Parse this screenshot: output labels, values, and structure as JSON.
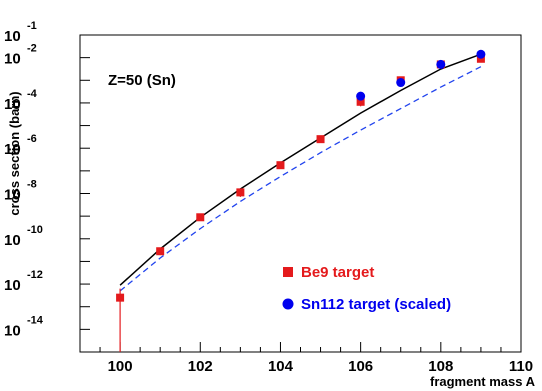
{
  "chart_data": {
    "type": "scatter",
    "title": "",
    "xlabel": "fragment mass A",
    "ylabel": "cross section (barn)",
    "annotation": "Z=50 (Sn)",
    "xlim": [
      99,
      110
    ],
    "ylim_log10": [
      -15,
      -1
    ],
    "y_scale": "log",
    "grid": false,
    "legend_position": "bottom-right",
    "x_ticks": [
      100,
      102,
      104,
      106,
      108,
      110
    ],
    "y_ticks": [
      {
        "base": "10",
        "exp": "-1"
      },
      {
        "base": "10",
        "exp": "-2"
      },
      {
        "base": "10",
        "exp": "-4"
      },
      {
        "base": "10",
        "exp": "-6"
      },
      {
        "base": "10",
        "exp": "-8"
      },
      {
        "base": "10",
        "exp": "-10"
      },
      {
        "base": "10",
        "exp": "-12"
      },
      {
        "base": "10",
        "exp": "-14"
      }
    ],
    "series": [
      {
        "name": "Be9 target",
        "kind": "points",
        "marker": "square",
        "color": "#e41a1c",
        "x": [
          100,
          101,
          102,
          103,
          104,
          105,
          106,
          107,
          108,
          109
        ],
        "log10_y": [
          -12.6,
          -10.55,
          -9.05,
          -7.95,
          -6.75,
          -5.6,
          -3.95,
          -3.0,
          -2.3,
          -2.05
        ],
        "log10_err_low": [
          3.2,
          0.15,
          0.1,
          0.2,
          0.1,
          0.1,
          0.2,
          0.2,
          0.1,
          0.1
        ],
        "log10_err_high": [
          0.4,
          0.1,
          0.1,
          0.1,
          0.1,
          0.1,
          0.1,
          0.1,
          0.1,
          0.1
        ]
      },
      {
        "name": "Sn112 target (scaled)",
        "kind": "points",
        "marker": "circle",
        "color": "#0000ee",
        "x": [
          106,
          107,
          108,
          109
        ],
        "log10_y": [
          -3.7,
          -3.1,
          -2.3,
          -1.85
        ]
      },
      {
        "name": "",
        "kind": "line",
        "style": "solid",
        "color": "#000000",
        "x": [
          100,
          101,
          102,
          103,
          104,
          105,
          106,
          107,
          108,
          109
        ],
        "log10_y": [
          -12.05,
          -10.45,
          -9.05,
          -7.8,
          -6.65,
          -5.55,
          -4.45,
          -3.45,
          -2.5,
          -1.85
        ]
      },
      {
        "name": "",
        "kind": "line",
        "style": "dashed",
        "color": "#2244ee",
        "x": [
          100,
          101,
          102,
          103,
          104,
          105,
          106,
          107,
          108,
          109
        ],
        "log10_y": [
          -12.3,
          -10.85,
          -9.55,
          -8.35,
          -7.25,
          -6.2,
          -5.2,
          -4.25,
          -3.3,
          -2.4
        ]
      }
    ]
  }
}
